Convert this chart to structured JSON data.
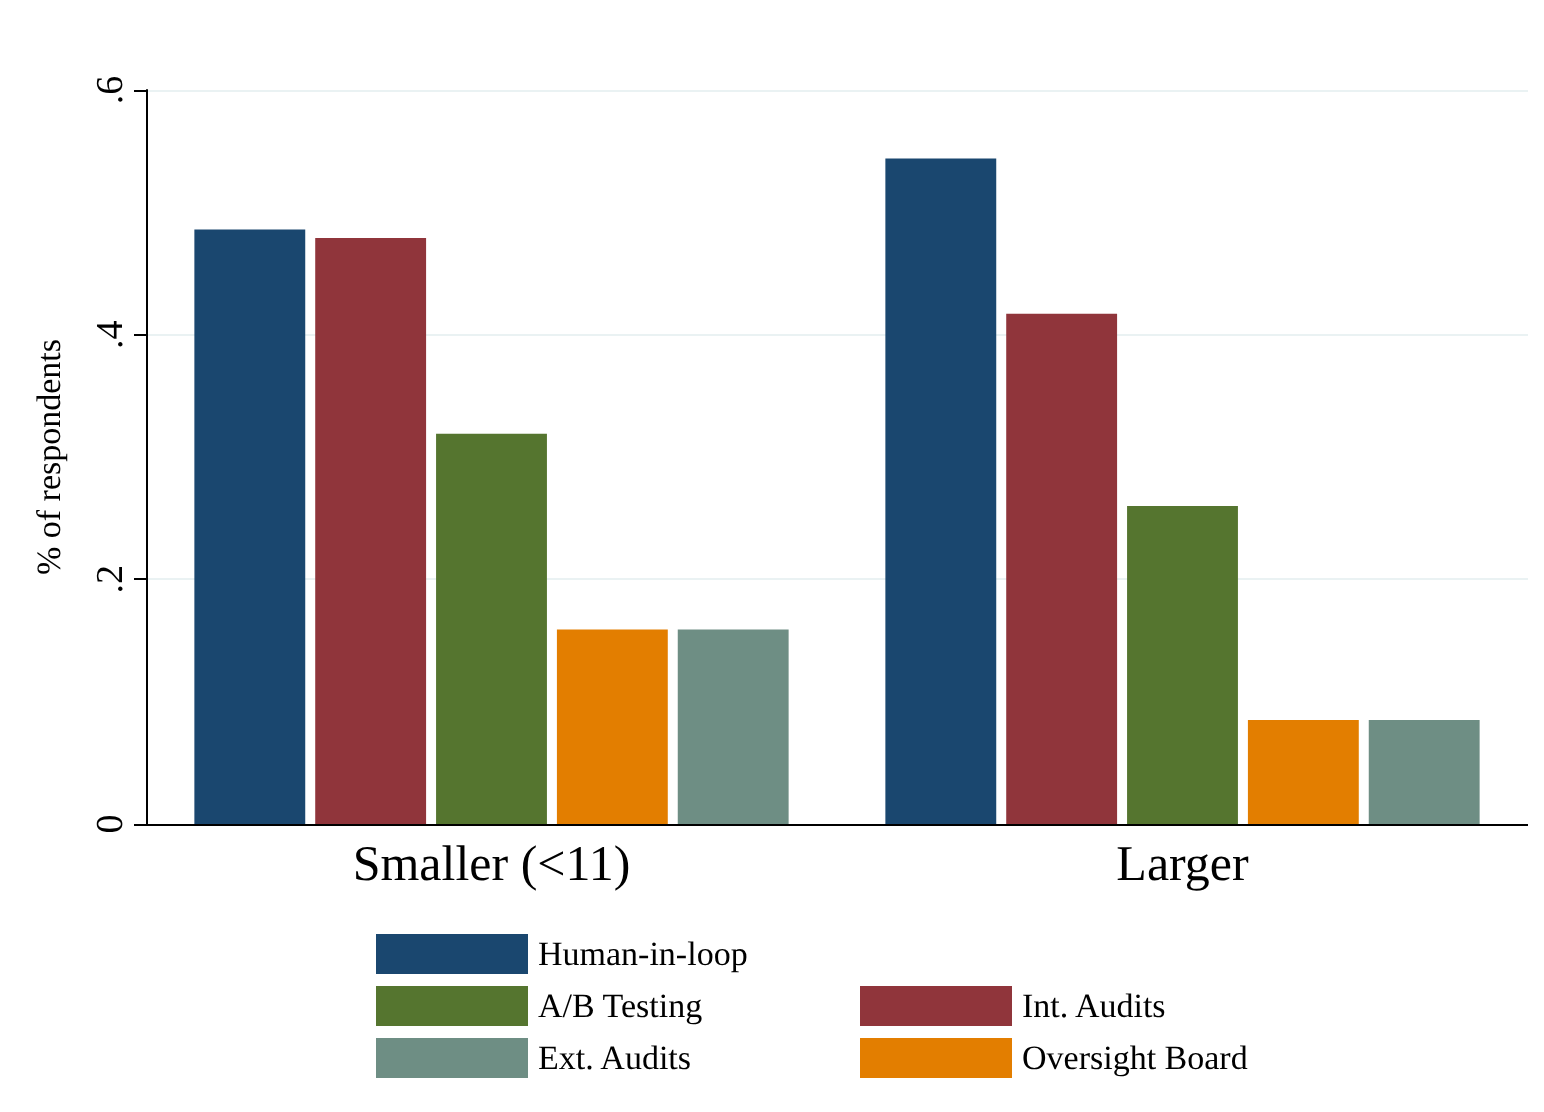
{
  "chart_data": {
    "type": "bar",
    "ylabel": "% of respondents",
    "categories": [
      "Smaller (<11)",
      "Larger"
    ],
    "series": [
      {
        "name": "Human-in-loop",
        "color": "#1a476f",
        "values": [
          0.486,
          0.544
        ]
      },
      {
        "name": "Int. Audits",
        "color": "#90353b",
        "values": [
          0.479,
          0.417
        ]
      },
      {
        "name": "A/B Testing",
        "color": "#55752f",
        "values": [
          0.319,
          0.26
        ]
      },
      {
        "name": "Oversight Board",
        "color": "#e37e00",
        "values": [
          0.159,
          0.085
        ]
      },
      {
        "name": "Ext. Audits",
        "color": "#6e8e84",
        "values": [
          0.159,
          0.085
        ]
      }
    ],
    "ylim": [
      0,
      0.6
    ],
    "yticks": [
      {
        "value": 0,
        "label": "0"
      },
      {
        "value": 0.2,
        "label": ".2"
      },
      {
        "value": 0.4,
        "label": ".4"
      },
      {
        "value": 0.6,
        "label": ".6"
      }
    ],
    "grid": "y",
    "legend": "bottom"
  }
}
